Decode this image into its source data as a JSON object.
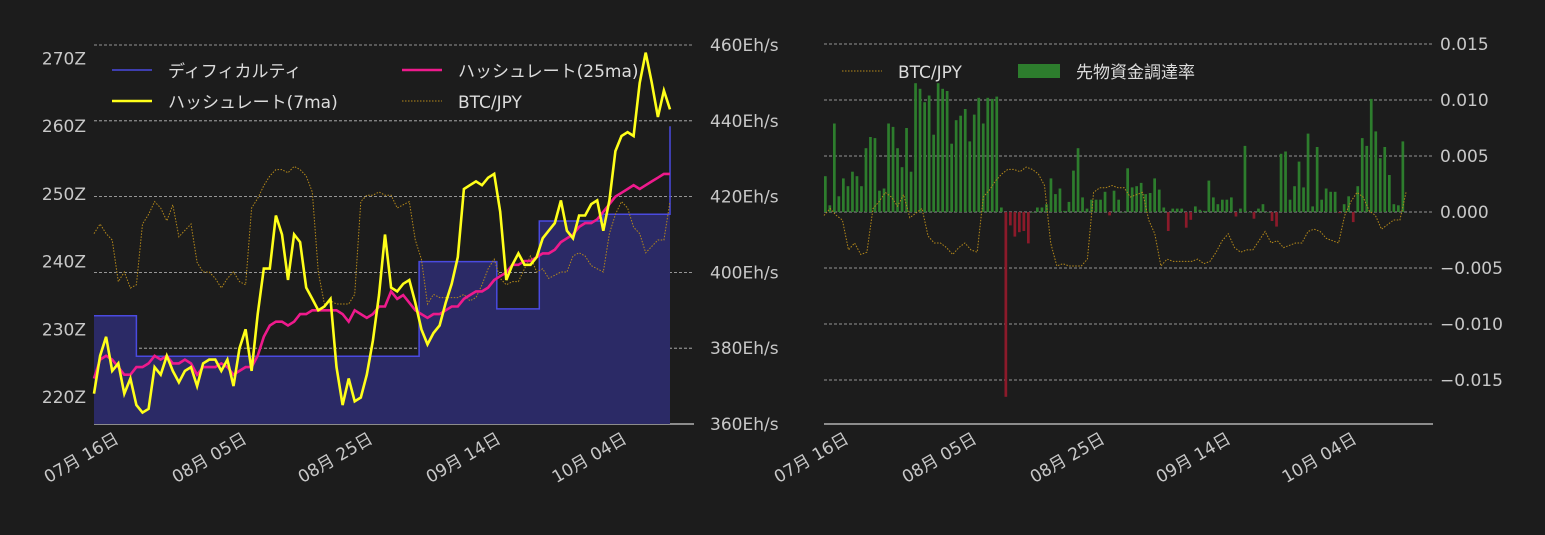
{
  "chart_data": [
    {
      "type": "line",
      "x_ticks": [
        "07月 16日",
        "08月 05日",
        "08月 25日",
        "09月 14日",
        "10月 04日"
      ],
      "y_left": {
        "ticks": [
          "220Z",
          "230Z",
          "240Z",
          "250Z",
          "260Z",
          "270Z"
        ],
        "values": [
          220,
          230,
          240,
          250,
          260,
          270
        ],
        "range": [
          216,
          272
        ]
      },
      "y_right": {
        "ticks": [
          "360Eh/s",
          "380Eh/s",
          "400Eh/s",
          "420Eh/s",
          "440Eh/s",
          "460Eh/s"
        ],
        "values": [
          360,
          380,
          400,
          420,
          440,
          460
        ],
        "range": [
          360,
          460
        ]
      },
      "legend": [
        "ディフィカルティ",
        "ハッシュレート(25ma)",
        "ハッシュレート(7ma)",
        "BTC/JPY"
      ],
      "colors": {
        "difficulty": "#4a4ae0",
        "difficulty_fill": "#2b2a66",
        "hash7": "#ffff1a",
        "hash25": "#ee1a8c",
        "btc": "#b5891a"
      },
      "series": {
        "difficulty": [
          [
            0,
            232
          ],
          [
            12,
            232
          ],
          [
            12,
            226
          ],
          [
            52,
            226
          ],
          [
            52,
            226
          ],
          [
            92,
            226
          ],
          [
            92,
            240
          ],
          [
            114,
            240
          ],
          [
            114,
            233
          ],
          [
            126,
            233
          ],
          [
            126,
            246
          ],
          [
            144,
            246
          ],
          [
            144,
            247
          ],
          [
            163,
            247
          ],
          [
            163,
            260
          ]
        ],
        "hash7": [
          368,
          378,
          383,
          374,
          376,
          368,
          372,
          365,
          363,
          364,
          375,
          373,
          378,
          374,
          371,
          374,
          375,
          370,
          376,
          377,
          377,
          374,
          377,
          370,
          380,
          385,
          374,
          389,
          401,
          401,
          415,
          410,
          398,
          410,
          408,
          396,
          393,
          390,
          391,
          393,
          375,
          365,
          372,
          366,
          367,
          373,
          382,
          394,
          410,
          396,
          395,
          397,
          398,
          392,
          385,
          381,
          384,
          386,
          392,
          397,
          404,
          422,
          423,
          424,
          423,
          425,
          426,
          416,
          398,
          402,
          405,
          402,
          402,
          404,
          409,
          411,
          413,
          419,
          411,
          409,
          415,
          415,
          418,
          419,
          411,
          419,
          432,
          436,
          437,
          436,
          450,
          458,
          450,
          441,
          448,
          443
        ],
        "hash25": [
          372,
          377,
          378,
          377,
          375,
          373,
          373,
          375,
          375,
          376,
          378,
          377,
          378,
          376,
          376,
          377,
          376,
          373,
          375,
          375,
          375,
          376,
          375,
          373,
          374,
          375,
          375,
          378,
          383,
          386,
          387,
          387,
          386,
          387,
          389,
          389,
          390,
          390,
          390,
          390,
          390,
          389,
          387,
          390,
          389,
          388,
          389,
          391,
          391,
          395,
          393,
          394,
          392,
          390,
          389,
          388,
          389,
          389,
          390,
          391,
          391,
          393,
          394,
          395,
          395,
          396,
          398,
          399,
          400,
          402,
          402,
          403,
          403,
          404,
          405,
          405,
          406,
          408,
          409,
          410,
          412,
          413,
          413,
          414,
          416,
          418,
          420,
          421,
          422,
          423,
          422,
          423,
          424,
          425,
          426,
          426
        ],
        "btc": [
          0.52,
          0.55,
          0.52,
          0.5,
          0.37,
          0.4,
          0.35,
          0.36,
          0.55,
          0.58,
          0.62,
          0.6,
          0.56,
          0.61,
          0.51,
          0.53,
          0.55,
          0.43,
          0.4,
          0.4,
          0.38,
          0.35,
          0.38,
          0.4,
          0.37,
          0.36,
          0.6,
          0.63,
          0.67,
          0.7,
          0.72,
          0.72,
          0.71,
          0.73,
          0.72,
          0.7,
          0.65,
          0.4,
          0.3,
          0.31,
          0.3,
          0.3,
          0.3,
          0.33,
          0.62,
          0.64,
          0.64,
          0.65,
          0.64,
          0.64,
          0.6,
          0.61,
          0.62,
          0.5,
          0.44,
          0.3,
          0.33,
          0.32,
          0.32,
          0.32,
          0.32,
          0.33,
          0.31,
          0.32,
          0.36,
          0.41,
          0.44,
          0.38,
          0.36,
          0.37,
          0.37,
          0.41,
          0.45,
          0.4,
          0.41,
          0.38,
          0.39,
          0.4,
          0.4,
          0.45,
          0.46,
          0.45,
          0.42,
          0.41,
          0.4,
          0.52,
          0.58,
          0.62,
          0.6,
          0.54,
          0.52,
          0.46,
          0.48,
          0.5,
          0.5,
          0.62
        ]
      }
    },
    {
      "type": "bar",
      "x_ticks": [
        "07月 16日",
        "08月 05日",
        "08月 25日",
        "09月 14日",
        "10月 04日"
      ],
      "y_right": {
        "ticks": [
          "0.015",
          "0.010",
          "0.005",
          "0.000",
          "−0.005",
          "−0.010",
          "−0.015"
        ],
        "values": [
          0.015,
          0.01,
          0.005,
          0,
          -0.005,
          -0.01,
          -0.015
        ],
        "range": [
          -0.0165,
          0.015
        ]
      },
      "legend": [
        "BTC/JPY",
        "先物資金調達率"
      ],
      "colors": {
        "positive": "#2d7d2d",
        "negative": "#8b1a2a",
        "btc": "#b5891a"
      },
      "funding": [
        0.0032,
        0.0006,
        0.0079,
        0.0014,
        0.003,
        0.0023,
        0.0036,
        0.0032,
        0.0023,
        0.0057,
        0.0067,
        0.0066,
        0.0019,
        0.0021,
        0.0079,
        0.0076,
        0.0057,
        0.004,
        0.0075,
        0.0036,
        0.0115,
        0.011,
        0.0098,
        0.0104,
        0.0069,
        0.0115,
        0.011,
        0.0108,
        0.0061,
        0.0082,
        0.0086,
        0.0092,
        0.0063,
        0.0087,
        0.0102,
        0.0079,
        0.0102,
        0.0101,
        0.0103,
        0.0004,
        -0.0165,
        -0.0012,
        -0.0022,
        -0.0018,
        -0.0017,
        -0.0028,
        0,
        0.0004,
        0.0004,
        0.0007,
        0.003,
        0.0016,
        0.0021,
        0.0001,
        0.0009,
        0.0037,
        0.0057,
        0.0013,
        0.0003,
        0.0011,
        0.0011,
        0.0011,
        0.0018,
        -0.0003,
        0.0019,
        0.0011,
        0,
        0.0039,
        0.0022,
        0.0023,
        0.0026,
        0.0016,
        0.0017,
        0.003,
        0.002,
        0.0004,
        -0.0017,
        0.0003,
        0.0003,
        0.0003,
        -0.0014,
        -0.0007,
        0.0005,
        0.0002,
        0.0001,
        0.0028,
        0.0013,
        0.0007,
        0.0011,
        0.0011,
        0.0013,
        -0.0004,
        0.0003,
        0.0059,
        0,
        -0.0006,
        0.0003,
        0.0007,
        0,
        -0.0008,
        -0.0013,
        0.0052,
        0.0054,
        0.0011,
        0.0023,
        0.0045,
        0.0022,
        0.007,
        0.0005,
        0.0058,
        0.0011,
        0.0021,
        0.0018,
        0.0018,
        -0.0001,
        0.0007,
        0.0014,
        -0.0009,
        0.0023,
        0.0066,
        0.0059,
        0.0101,
        0.0072,
        0.0048,
        0.0058,
        0.0033,
        0.0007,
        0.0006,
        0.0063
      ]
    }
  ]
}
